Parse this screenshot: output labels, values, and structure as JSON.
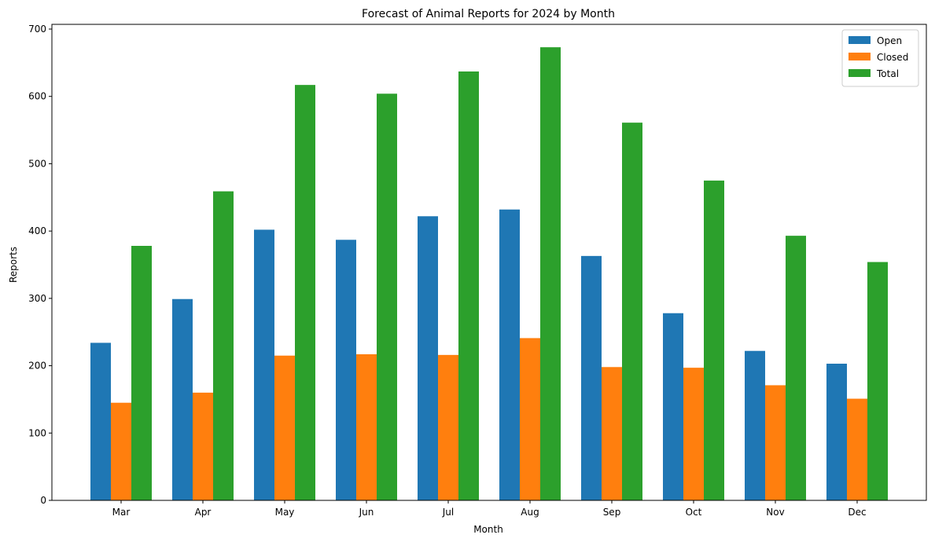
{
  "chart_data": {
    "type": "bar",
    "title": "Forecast of Animal Reports for 2024 by Month",
    "xlabel": "Month",
    "ylabel": "Reports",
    "categories": [
      "Mar",
      "Apr",
      "May",
      "Jun",
      "Jul",
      "Aug",
      "Sep",
      "Oct",
      "Nov",
      "Dec"
    ],
    "series": [
      {
        "name": "Open",
        "color": "#1f77b4",
        "values": [
          234,
          299,
          402,
          387,
          422,
          432,
          363,
          278,
          222,
          203
        ]
      },
      {
        "name": "Closed",
        "color": "#ff7f0e",
        "values": [
          145,
          160,
          215,
          217,
          216,
          241,
          198,
          197,
          171,
          151
        ]
      },
      {
        "name": "Total",
        "color": "#2ca02c",
        "values": [
          378,
          459,
          617,
          604,
          637,
          673,
          561,
          475,
          393,
          354
        ]
      }
    ],
    "ylim": [
      0,
      707
    ],
    "yticks": [
      0,
      100,
      200,
      300,
      400,
      500,
      600,
      700
    ],
    "grid": false,
    "legend_position": "top-right"
  }
}
